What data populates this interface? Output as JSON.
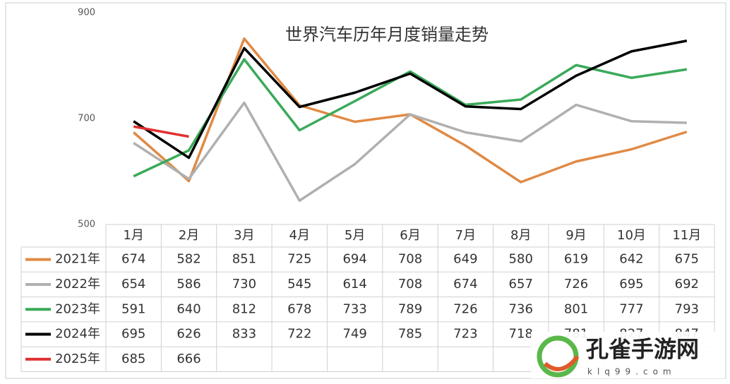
{
  "chart_data": {
    "type": "line",
    "title": "世界汽车历年月度销量走势",
    "categories": [
      "1月",
      "2月",
      "3月",
      "4月",
      "5月",
      "6月",
      "7月",
      "8月",
      "9月",
      "10月",
      "11月"
    ],
    "series": [
      {
        "name": "2021年",
        "color": "#e08a45",
        "values": [
          674,
          582,
          851,
          725,
          694,
          708,
          649,
          580,
          619,
          642,
          675
        ]
      },
      {
        "name": "2022年",
        "color": "#b0b0b0",
        "values": [
          654,
          586,
          730,
          545,
          614,
          708,
          674,
          657,
          726,
          695,
          692
        ]
      },
      {
        "name": "2023年",
        "color": "#3aaa5a",
        "values": [
          591,
          640,
          812,
          678,
          733,
          789,
          726,
          736,
          801,
          777,
          793
        ]
      },
      {
        "name": "2024年",
        "color": "#000000",
        "values": [
          695,
          626,
          833,
          722,
          749,
          785,
          723,
          718,
          781,
          827,
          847
        ]
      },
      {
        "name": "2025年",
        "color": "#e03030",
        "values": [
          685,
          666,
          null,
          null,
          null,
          null,
          null,
          null,
          null,
          null,
          null
        ]
      }
    ],
    "ylim": [
      500,
      900
    ],
    "yticks": [
      500,
      700,
      900
    ],
    "grid": false
  },
  "watermark": {
    "name": "孔雀手游网",
    "url": "klq99.com"
  }
}
